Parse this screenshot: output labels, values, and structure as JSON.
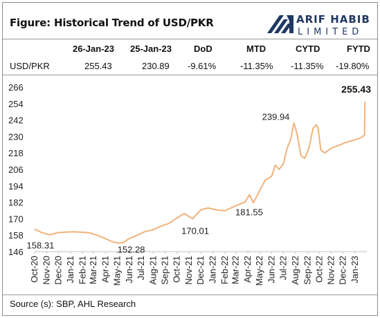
{
  "title": "Figure: Historical Trend of USD/PKR",
  "logo": {
    "line1": "ARIF HABIB",
    "line2": "LIMITED"
  },
  "table": {
    "headers": [
      "",
      "26-Jan-23",
      "25-Jan-23",
      "DoD",
      "MTD",
      "CYTD",
      "FYTD"
    ],
    "row": [
      "USD/PKR",
      "255.43",
      "230.89",
      "-9.61%",
      "-11.35%",
      "-11.35%",
      "-19.80%"
    ]
  },
  "source": "Source (s): SBP, AHL Research",
  "colors": {
    "line": "#F0B27A",
    "rule": "#9a9a9a",
    "text": "#111111",
    "logo": "#1F3864"
  },
  "chart_data": {
    "type": "line",
    "title": "",
    "xlabel": "",
    "ylabel": "",
    "ylim": [
      146,
      266
    ],
    "yticks": [
      146,
      158,
      170,
      182,
      194,
      206,
      218,
      230,
      242,
      254,
      266
    ],
    "grid": false,
    "x_tick_labels": [
      "Oct-20",
      "Nov-20",
      "Dec-20",
      "Jan-21",
      "Feb-21",
      "Mar-21",
      "Apr-21",
      "May-21",
      "Jun-21",
      "Jul-21",
      "Aug-21",
      "Sep-21",
      "Oct-21",
      "Nov-21",
      "Dec-21",
      "Jan-22",
      "Feb-22",
      "Mar-22",
      "Apr-22",
      "May-22",
      "Jun-22",
      "Jul-22",
      "Aug-22",
      "Sep-22",
      "Oct-22",
      "Nov-22",
      "Dec-22",
      "Jan-23"
    ],
    "series": [
      {
        "x": [
          "2020-10-01",
          "2020-10-20",
          "2020-11-10",
          "2020-12-01",
          "2020-12-20",
          "2021-01-10",
          "2021-02-01",
          "2021-02-20",
          "2021-03-10",
          "2021-04-01",
          "2021-04-20",
          "2021-05-05",
          "2021-05-15",
          "2021-06-01",
          "2021-06-20",
          "2021-07-10",
          "2021-08-01",
          "2021-08-20",
          "2021-09-10",
          "2021-10-01",
          "2021-10-20",
          "2021-11-10",
          "2021-12-01",
          "2021-12-20",
          "2022-01-10",
          "2022-02-01",
          "2022-02-20",
          "2022-03-10",
          "2022-03-25",
          "2022-04-05",
          "2022-04-15",
          "2022-05-01",
          "2022-05-15",
          "2022-06-01",
          "2022-06-10",
          "2022-06-20",
          "2022-07-01",
          "2022-07-10",
          "2022-07-20",
          "2022-07-28",
          "2022-08-05",
          "2022-08-15",
          "2022-08-25",
          "2022-09-05",
          "2022-09-15",
          "2022-09-23",
          "2022-09-28",
          "2022-10-05",
          "2022-10-15",
          "2022-11-01",
          "2022-11-20",
          "2022-12-10",
          "2022-12-30",
          "2023-01-15",
          "2023-01-25",
          "2023-01-26"
        ],
        "y": [
          162.5,
          159.8,
          158.31,
          159.9,
          160.2,
          160.5,
          160.1,
          159.6,
          158.0,
          155.5,
          153.0,
          152.28,
          152.5,
          155.6,
          157.8,
          160.5,
          162.0,
          164.5,
          166.5,
          170.5,
          173.8,
          170.01,
          176.5,
          177.8,
          176.5,
          175.8,
          178.3,
          180.5,
          182.3,
          187.5,
          181.55,
          190.5,
          198.0,
          201.0,
          209.0,
          206.0,
          210.0,
          221.0,
          228.0,
          239.94,
          232.0,
          216.0,
          214.0,
          222.0,
          236.0,
          238.5,
          236.0,
          220.0,
          218.0,
          221.5,
          223.5,
          225.8,
          227.5,
          229.0,
          230.89,
          255.43
        ]
      }
    ],
    "annotations": [
      {
        "label": "158.31",
        "x": "2020-11-10",
        "y": 158.31
      },
      {
        "label": "152.28",
        "x": "2021-05-05",
        "y": 152.28
      },
      {
        "label": "170.01",
        "x": "2021-11-10",
        "y": 170.01
      },
      {
        "label": "181.55",
        "x": "2022-04-15",
        "y": 181.55
      },
      {
        "label": "239.94",
        "x": "2022-07-28",
        "y": 239.94
      },
      {
        "label": "255.43",
        "x": "2023-01-26",
        "y": 255.43
      }
    ]
  }
}
